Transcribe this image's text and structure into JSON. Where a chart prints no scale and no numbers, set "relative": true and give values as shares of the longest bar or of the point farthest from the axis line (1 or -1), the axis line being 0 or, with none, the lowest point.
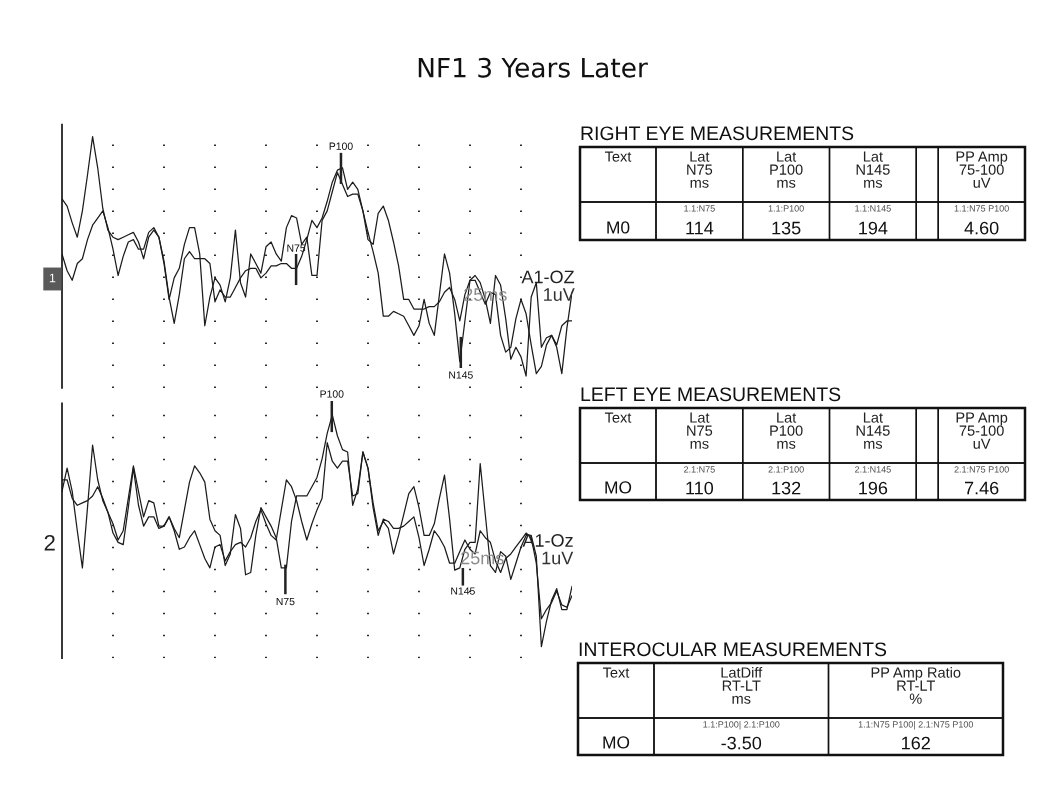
{
  "chart_data": [
    {
      "type": "line",
      "title": "NF1 3 Years Later",
      "ylabel": "1",
      "relative": true,
      "grid": "x",
      "categories": [
        null,
        null,
        null,
        null,
        null,
        null,
        null,
        null,
        null,
        null,
        null,
        null,
        null,
        null,
        null,
        null,
        null,
        null,
        null,
        null,
        null,
        null,
        null,
        null,
        null,
        null,
        null,
        null,
        null,
        null,
        null,
        null,
        null,
        null,
        null,
        null,
        null,
        null,
        null,
        null,
        null,
        null,
        null,
        null,
        null,
        null,
        null,
        null,
        null,
        null,
        null,
        null,
        null,
        null,
        null,
        null,
        null,
        null,
        null,
        null,
        null,
        null,
        null,
        null,
        null,
        null,
        null,
        null,
        null,
        null,
        null,
        null,
        null,
        null,
        null,
        null,
        null,
        null,
        null,
        null,
        null,
        null,
        null,
        null,
        null,
        null,
        null,
        null,
        null,
        null,
        null,
        null,
        null,
        null,
        null,
        null,
        null,
        null,
        null,
        null,
        null
      ],
      "series": [
        {
          "color": "#1c1c1c",
          "values": [
            0.74,
            0.71,
            0.64,
            0.58,
            0.69,
            0.84,
            1.0,
            0.87,
            0.7,
            0.61,
            0.58,
            0.57,
            0.58,
            0.59,
            0.6,
            0.56,
            0.49,
            0.58,
            0.61,
            0.58,
            0.47,
            0.32,
            0.41,
            0.45,
            0.55,
            0.62,
            0.62,
            0.51,
            0.21,
            0.33,
            0.41,
            0.38,
            0.31,
            0.41,
            0.61,
            0.39,
            0.33,
            0.51,
            0.47,
            0.43,
            0.54,
            0.56,
            0.51,
            0.48,
            0.62,
            0.67,
            0.66,
            0.55,
            0.58,
            0.42,
            0.42,
            0.65,
            0.69,
            0.77,
            0.85,
            0.8,
            0.75,
            0.76,
            0.76,
            0.69,
            0.6,
            0.52,
            0.43,
            0.25,
            0.25,
            0.27,
            0.26,
            0.25,
            0.21,
            0.17,
            0.21,
            0.32,
            0.22,
            0.17,
            0.34,
            0.51,
            0.43,
            0.26,
            0.06,
            0.23,
            0.4,
            0.42,
            0.39,
            0.32,
            0.22,
            0.42,
            0.38,
            0.24,
            0.07,
            0.12,
            0.08,
            0.0,
            0.33,
            0.39,
            0.12,
            0.16,
            0.17,
            0.12,
            0.01,
            0.2,
            0.35
          ]
        },
        {
          "color": "#1c1c1c",
          "values": [
            0.51,
            0.44,
            0.4,
            0.47,
            0.49,
            0.57,
            0.63,
            0.66,
            0.69,
            0.62,
            0.53,
            0.42,
            0.5,
            0.56,
            0.57,
            0.53,
            0.53,
            0.6,
            0.62,
            0.58,
            0.48,
            0.33,
            0.22,
            0.34,
            0.49,
            0.52,
            0.49,
            0.49,
            0.49,
            0.47,
            0.31,
            0.36,
            0.33,
            0.33,
            0.37,
            0.41,
            0.44,
            0.45,
            0.45,
            0.41,
            0.43,
            0.46,
            0.46,
            0.47,
            0.47,
            0.45,
            0.45,
            0.5,
            0.57,
            0.65,
            0.62,
            0.66,
            0.73,
            0.81,
            0.86,
            0.87,
            0.78,
            0.81,
            0.78,
            0.69,
            0.57,
            0.55,
            0.68,
            0.71,
            0.65,
            0.56,
            0.46,
            0.32,
            0.32,
            0.28,
            0.28,
            0.28,
            0.29,
            0.29,
            0.31,
            0.35,
            0.37,
            0.32,
            0.23,
            0.34,
            0.4,
            0.4,
            0.35,
            0.3,
            0.35,
            0.34,
            0.17,
            0.1,
            0.12,
            0.24,
            0.32,
            0.26,
            0.13,
            0.01,
            0.04,
            0.13,
            0.17,
            0.13,
            0.21,
            0.23,
            0.23
          ]
        }
      ],
      "annotations": [
        "P100",
        "N75",
        "N145",
        "25ms",
        "A1-OZ",
        "1uV"
      ]
    },
    {
      "type": "other",
      "title": "RIGHT EYE MEASUREMENTS",
      "ylabel": "Text",
      "categories": [
        "Lat\nN75\nms",
        "Lat\nP100\nms",
        "Lat\nN145\nms",
        null,
        "PP Amp\n75-100\nuV"
      ],
      "y_categories": [
        "M0"
      ],
      "cell_labels": [
        [
          "114",
          "135",
          "194",
          null,
          "4.60"
        ]
      ],
      "annotations": [
        "1.1:N75",
        "1.1:P100",
        "1.1:N145",
        "1.1:N75 P100"
      ]
    },
    {
      "type": "line",
      "ylabel": "2",
      "relative": true,
      "grid": "x",
      "categories": [
        null,
        null,
        null,
        null,
        null,
        null,
        null,
        null,
        null,
        null,
        null,
        null,
        null,
        null,
        null,
        null,
        null,
        null,
        null,
        null,
        null,
        null,
        null,
        null,
        null,
        null,
        null,
        null,
        null,
        null,
        null,
        null,
        null,
        null,
        null,
        null,
        null,
        null,
        null,
        null,
        null,
        null,
        null,
        null,
        null,
        null,
        null,
        null,
        null,
        null,
        null,
        null,
        null,
        null,
        null,
        null,
        null,
        null,
        null,
        null,
        null,
        null,
        null,
        null,
        null,
        null,
        null,
        null,
        null,
        null,
        null,
        null,
        null,
        null,
        null,
        null,
        null,
        null,
        null,
        null,
        null,
        null,
        null,
        null,
        null,
        null,
        null,
        null,
        null,
        null,
        null,
        null,
        null,
        null,
        null,
        null,
        null,
        null,
        null,
        null,
        null
      ],
      "series": [
        {
          "color": "#1c1c1c",
          "values": [
            0.67,
            0.77,
            0.67,
            0.5,
            0.34,
            0.6,
            0.87,
            0.72,
            0.63,
            0.58,
            0.53,
            0.46,
            0.5,
            0.64,
            0.78,
            0.67,
            0.56,
            0.63,
            0.62,
            0.52,
            0.52,
            0.56,
            0.51,
            0.47,
            0.59,
            0.71,
            0.78,
            0.75,
            0.71,
            0.55,
            0.5,
            0.48,
            0.35,
            0.4,
            0.57,
            0.51,
            0.31,
            0.32,
            0.48,
            0.6,
            0.56,
            0.52,
            0.47,
            0.34,
            0.34,
            0.54,
            0.65,
            0.65,
            0.65,
            0.69,
            0.73,
            0.81,
            0.92,
            1.0,
            0.91,
            0.85,
            0.84,
            0.61,
            0.68,
            0.84,
            0.77,
            0.62,
            0.5,
            0.54,
            0.51,
            0.4,
            0.48,
            0.57,
            0.66,
            0.69,
            0.6,
            0.48,
            0.48,
            0.53,
            0.64,
            0.74,
            0.55,
            0.33,
            0.34,
            0.42,
            0.45,
            0.45,
            0.79,
            0.57,
            0.35,
            0.32,
            0.41,
            0.39,
            0.29,
            0.36,
            0.43,
            0.48,
            0.48,
            0.39,
            0.0,
            0.11,
            0.2,
            0.25,
            0.16,
            0.16,
            0.26
          ]
        },
        {
          "color": "#1c1c1c",
          "values": [
            0.72,
            0.72,
            0.64,
            0.61,
            0.62,
            0.63,
            0.65,
            0.69,
            0.64,
            0.58,
            0.49,
            0.45,
            0.44,
            0.6,
            0.77,
            0.61,
            0.52,
            0.56,
            0.56,
            0.51,
            0.52,
            0.56,
            0.5,
            0.42,
            0.43,
            0.47,
            0.5,
            0.44,
            0.38,
            0.34,
            0.43,
            0.44,
            0.37,
            0.41,
            0.44,
            0.45,
            0.43,
            0.47,
            0.54,
            0.59,
            0.53,
            0.48,
            0.46,
            0.59,
            0.72,
            0.69,
            0.63,
            0.54,
            0.46,
            0.53,
            0.59,
            0.64,
            0.88,
            0.8,
            0.77,
            0.8,
            0.8,
            0.65,
            0.66,
            0.84,
            0.77,
            0.6,
            0.48,
            0.55,
            0.54,
            0.51,
            0.51,
            0.52,
            0.54,
            0.56,
            0.47,
            0.35,
            0.42,
            0.5,
            0.47,
            0.43,
            0.36,
            0.36,
            0.41,
            0.46,
            0.42,
            0.4,
            0.5,
            0.47,
            0.45,
            0.37,
            0.32,
            0.38,
            0.4,
            0.43,
            0.46,
            0.49,
            0.47,
            0.36,
            0.12,
            0.16,
            0.19,
            0.24,
            0.18,
            0.17,
            0.22
          ]
        }
      ],
      "annotations": [
        "P100",
        "N75",
        "N145",
        "25ms",
        "A1-Oz",
        "1uV"
      ]
    },
    {
      "type": "other",
      "title": "LEFT EYE MEASUREMENTS",
      "ylabel": "Text",
      "categories": [
        "Lat\nN75\nms",
        "Lat\nP100\nms",
        "Lat\nN145\nms",
        null,
        "PP Amp\n75-100\nuV"
      ],
      "y_categories": [
        "MO"
      ],
      "cell_labels": [
        [
          "110",
          "132",
          "196",
          null,
          "7.46"
        ]
      ],
      "annotations": [
        "2.1:N75",
        "2.1:P100",
        "2.1:N145",
        "2.1:N75 P100"
      ]
    },
    {
      "type": "other",
      "title": "INTEROCULAR MEASUREMENTS",
      "ylabel": "Text",
      "categories": [
        "LatDiff\nRT-LT\nms",
        "PP Amp Ratio\nRT-LT\n%"
      ],
      "y_categories": [
        "MO"
      ],
      "cell_labels": [
        [
          "-3.50",
          "162"
        ]
      ],
      "annotations": [
        "1.1:P100| 2.1:P100",
        "1.1:N75 P100| 2.1:N75 P100"
      ]
    }
  ]
}
